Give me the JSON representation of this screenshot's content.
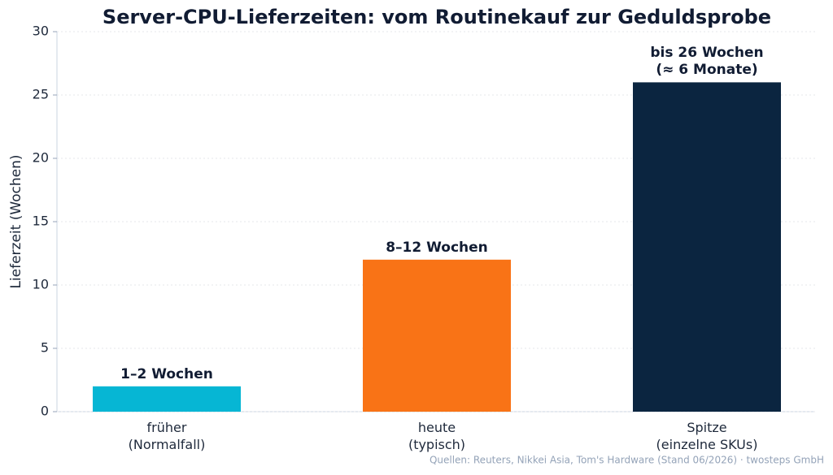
{
  "chart_data": {
    "type": "bar",
    "title": "Server-CPU-Lieferzeiten: vom Routinekauf zur Geduldsprobe",
    "y_label": "Lieferzeit (Wochen)",
    "categories": [
      "früher\n(Normalfall)",
      "heute\n(typisch)",
      "Spitze\n(einzelne SKUs)"
    ],
    "values": [
      2,
      12,
      26
    ],
    "value_labels": [
      "1–2 Wochen",
      "8–12 Wochen",
      "bis 26 Wochen\n(≈ 6 Monate)"
    ],
    "colors": [
      "#06b6d4",
      "#f97316",
      "#0b2540"
    ],
    "ylim": [
      0,
      30
    ],
    "yticks": [
      0,
      5,
      10,
      15,
      20,
      25,
      30
    ],
    "grid": true,
    "source": "Quellen: Reuters, Nikkei Asia, Tom's Hardware (Stand 06/2026) · twosteps GmbH"
  }
}
